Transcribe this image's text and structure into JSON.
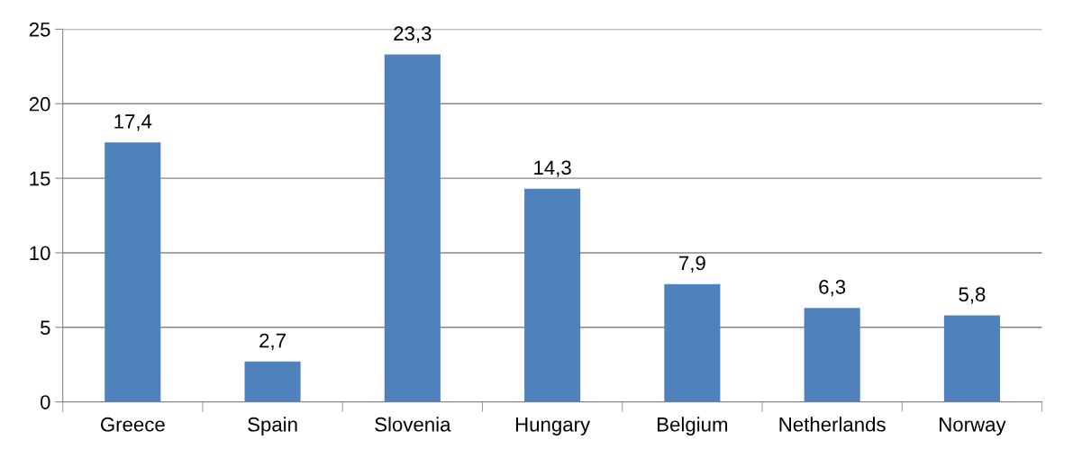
{
  "chart_data": {
    "type": "bar",
    "categories": [
      "Greece",
      "Spain",
      "Slovenia",
      "Hungary",
      "Belgium",
      "Netherlands",
      "Norway"
    ],
    "values": [
      17.4,
      2.7,
      23.3,
      14.3,
      7.9,
      6.3,
      5.8
    ],
    "value_labels": [
      "17,4",
      "2,7",
      "23,3",
      "14,3",
      "7,9",
      "6,3",
      "5,8"
    ],
    "color": "#4f81bd",
    "ylim": [
      0,
      25
    ],
    "yticks": [
      0,
      5,
      10,
      15,
      20,
      25
    ],
    "grid": "y",
    "legend": false
  }
}
